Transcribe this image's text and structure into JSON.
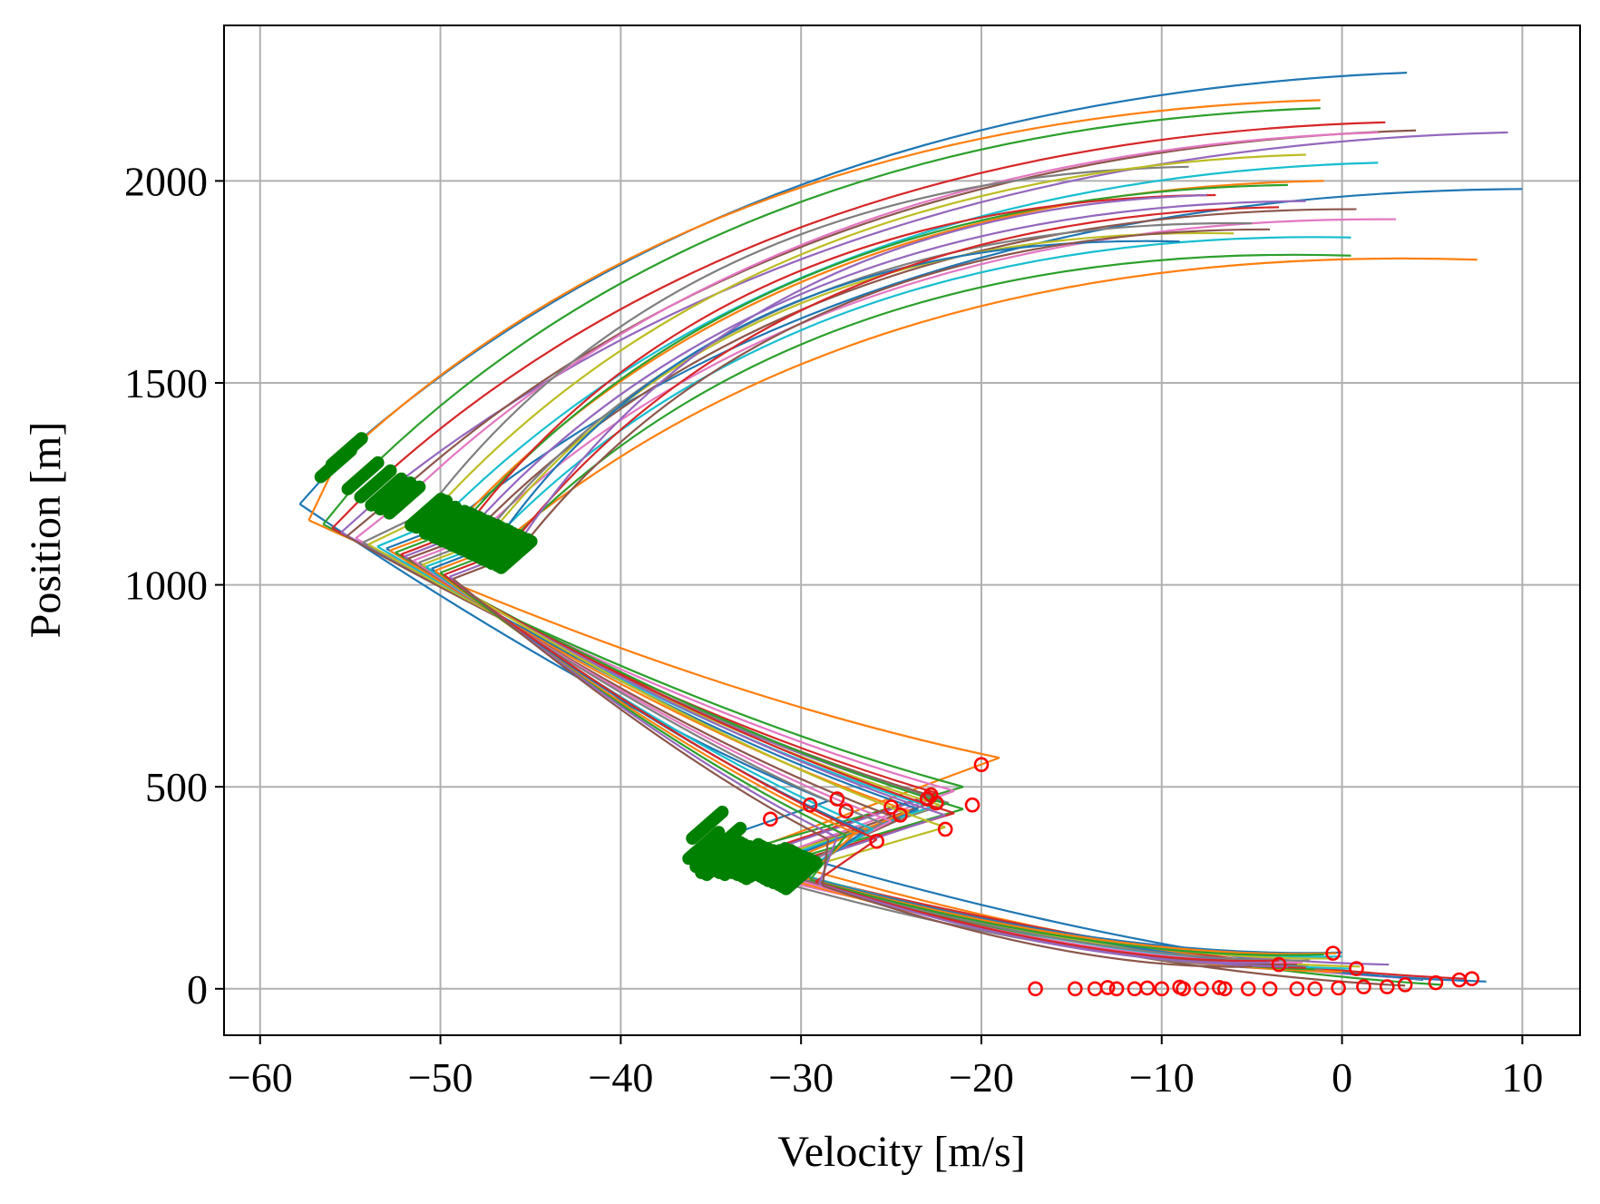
{
  "chart_data": {
    "type": "line",
    "title": "",
    "xlabel": "Velocity [m/s]",
    "ylabel": "Position [m]",
    "xlim": [
      -62,
      13.2
    ],
    "ylim": [
      -115,
      2385
    ],
    "x_ticks": [
      -60,
      -50,
      -40,
      -30,
      -20,
      -10,
      0,
      10
    ],
    "x_tick_labels": [
      "−60",
      "−50",
      "−40",
      "−30",
      "−20",
      "−10",
      "0",
      "10"
    ],
    "y_ticks": [
      0,
      500,
      1000,
      1500,
      2000
    ],
    "y_tick_labels": [
      "0",
      "500",
      "1000",
      "1500",
      "2000"
    ],
    "grid": true,
    "legend": "none",
    "series_colors": [
      "#1f77b4",
      "#ff7f0e",
      "#2ca02c",
      "#d62728",
      "#9467bd",
      "#8c564b",
      "#e377c2",
      "#7f7f7f",
      "#bcbd22",
      "#17becf"
    ],
    "marker_colors": {
      "phase_switch": "#008000",
      "stop_point": "#ff0000"
    },
    "trajectories": [
      {
        "phase1": [
          [
            -55.2,
            1330
          ],
          [
            3.6,
            2268
          ]
        ],
        "phase2": [
          [
            -57.8,
            1200
          ],
          [
            -28.5,
            465
          ]
        ],
        "phase3": [
          [
            -34,
            380
          ],
          [
            4.5,
            22
          ]
        ]
      },
      {
        "phase1": [
          [
            -55.8,
            1300
          ],
          [
            -1.2,
            2200
          ]
        ],
        "phase2": [
          [
            -57.3,
            1160
          ],
          [
            -19,
            572
          ]
        ],
        "phase3": [
          [
            -33,
            340
          ],
          [
            1.5,
            40
          ]
        ]
      },
      {
        "phase1": [
          [
            -54.3,
            1270
          ],
          [
            -1.2,
            2180
          ]
        ],
        "phase2": [
          [
            -56.5,
            1150
          ],
          [
            -21,
            500
          ]
        ],
        "phase3": [
          [
            -34.2,
            330
          ],
          [
            5.5,
            10
          ]
        ]
      },
      {
        "phase1": [
          [
            -53.6,
            1250
          ],
          [
            2.4,
            2145
          ]
        ],
        "phase2": [
          [
            -56.0,
            1140
          ],
          [
            -22.5,
            485
          ]
        ],
        "phase3": [
          [
            -33.5,
            320
          ],
          [
            6.8,
            25
          ]
        ]
      },
      {
        "phase1": [
          [
            -53.0,
            1230
          ],
          [
            9.2,
            2120
          ]
        ],
        "phase2": [
          [
            -55.5,
            1130
          ],
          [
            -23.0,
            475
          ]
        ],
        "phase3": [
          [
            -33.8,
            310
          ],
          [
            2.6,
            60
          ]
        ]
      },
      {
        "phase1": [
          [
            -52.5,
            1220
          ],
          [
            4.1,
            2125
          ]
        ],
        "phase2": [
          [
            -55.2,
            1120
          ],
          [
            -22.2,
            470
          ]
        ],
        "phase3": [
          [
            -33.0,
            300
          ],
          [
            3.5,
            8
          ]
        ]
      },
      {
        "phase1": [
          [
            -52.0,
            1210
          ],
          [
            2.0,
            2120
          ]
        ],
        "phase2": [
          [
            -54.7,
            1115
          ],
          [
            -21.5,
            490
          ]
        ],
        "phase3": [
          [
            -33.5,
            295
          ],
          [
            7.0,
            20
          ]
        ]
      },
      {
        "phase1": [
          [
            -50.8,
            1180
          ],
          [
            -8.5,
            2035
          ]
        ],
        "phase2": [
          [
            -54.3,
            1105
          ],
          [
            -21.8,
            460
          ]
        ],
        "phase3": [
          [
            -33.2,
            290
          ],
          [
            -1.0,
            45
          ]
        ]
      },
      {
        "phase1": [
          [
            -50.5,
            1175
          ],
          [
            -2.0,
            2065
          ]
        ],
        "phase2": [
          [
            -54.0,
            1100
          ],
          [
            -22.3,
            455
          ]
        ],
        "phase3": [
          [
            -33.0,
            305
          ],
          [
            1.0,
            55
          ]
        ]
      },
      {
        "phase1": [
          [
            -50.0,
            1160
          ],
          [
            2.0,
            2045
          ]
        ],
        "phase2": [
          [
            -53.5,
            1095
          ],
          [
            -22.8,
            450
          ]
        ],
        "phase3": [
          [
            -32.8,
            300
          ],
          [
            0.5,
            50
          ]
        ]
      },
      {
        "phase1": [
          [
            -49.5,
            1150
          ],
          [
            10.0,
            1980
          ]
        ],
        "phase2": [
          [
            -53.0,
            1090
          ],
          [
            -23.5,
            445
          ]
        ],
        "phase3": [
          [
            -32.5,
            295
          ],
          [
            8.0,
            18
          ]
        ]
      },
      {
        "phase1": [
          [
            -49.2,
            1145
          ],
          [
            -1.0,
            2000
          ]
        ],
        "phase2": [
          [
            -52.8,
            1085
          ],
          [
            -24.0,
            440
          ]
        ],
        "phase3": [
          [
            -32.2,
            290
          ],
          [
            0.0,
            42
          ]
        ]
      },
      {
        "phase1": [
          [
            -49.0,
            1140
          ],
          [
            -3.0,
            1990
          ]
        ],
        "phase2": [
          [
            -52.5,
            1080
          ],
          [
            -21.0,
            445
          ]
        ],
        "phase3": [
          [
            -32.0,
            300
          ],
          [
            -1.5,
            48
          ]
        ]
      },
      {
        "phase1": [
          [
            -48.7,
            1135
          ],
          [
            -7.0,
            1965
          ]
        ],
        "phase2": [
          [
            -52.2,
            1075
          ],
          [
            -21.5,
            435
          ]
        ],
        "phase3": [
          [
            -31.8,
            295
          ],
          [
            -2.0,
            52
          ]
        ]
      },
      {
        "phase1": [
          [
            -48.5,
            1130
          ],
          [
            -2.0,
            1950
          ]
        ],
        "phase2": [
          [
            -52.0,
            1070
          ],
          [
            -22.0,
            430
          ]
        ],
        "phase3": [
          [
            -31.5,
            290
          ],
          [
            -3.0,
            55
          ]
        ]
      },
      {
        "phase1": [
          [
            -48.2,
            1125
          ],
          [
            0.8,
            1930
          ]
        ],
        "phase2": [
          [
            -51.8,
            1065
          ],
          [
            -24.5,
            420
          ]
        ],
        "phase3": [
          [
            -31.2,
            285
          ],
          [
            -2.5,
            60
          ]
        ]
      },
      {
        "phase1": [
          [
            -48.0,
            1120
          ],
          [
            3.0,
            1905
          ]
        ],
        "phase2": [
          [
            -51.5,
            1060
          ],
          [
            -25.0,
            415
          ]
        ],
        "phase3": [
          [
            -31.0,
            280
          ],
          [
            -2.2,
            65
          ]
        ]
      },
      {
        "phase1": [
          [
            -47.7,
            1115
          ],
          [
            -5.0,
            1895
          ]
        ],
        "phase2": [
          [
            -51.2,
            1055
          ],
          [
            -25.5,
            410
          ]
        ],
        "phase3": [
          [
            -30.8,
            285
          ],
          [
            -1.8,
            70
          ]
        ]
      },
      {
        "phase1": [
          [
            -47.5,
            1110
          ],
          [
            -6.0,
            1870
          ]
        ],
        "phase2": [
          [
            -51.0,
            1050
          ],
          [
            -22.0,
            400
          ]
        ],
        "phase3": [
          [
            -30.5,
            290
          ],
          [
            -0.5,
            75
          ]
        ]
      },
      {
        "phase1": [
          [
            -47.2,
            1105
          ],
          [
            0.5,
            1860
          ]
        ],
        "phase2": [
          [
            -50.8,
            1045
          ],
          [
            -26.0,
            395
          ]
        ],
        "phase3": [
          [
            -30.2,
            285
          ],
          [
            0.0,
            80
          ]
        ]
      },
      {
        "phase1": [
          [
            -47.0,
            1100
          ],
          [
            -9.0,
            1850
          ]
        ],
        "phase2": [
          [
            -50.5,
            1040
          ],
          [
            -26.5,
            390
          ]
        ],
        "phase3": [
          [
            -30.0,
            280
          ],
          [
            0.0,
            90
          ]
        ]
      },
      {
        "phase1": [
          [
            -46.8,
            1095
          ],
          [
            7.5,
            1805
          ]
        ],
        "phase2": [
          [
            -50.3,
            1035
          ],
          [
            -27.0,
            385
          ]
        ],
        "phase3": [
          [
            -29.8,
            275
          ],
          [
            -0.3,
            88
          ]
        ]
      },
      {
        "phase1": [
          [
            -46.5,
            1090
          ],
          [
            0.5,
            1815
          ]
        ],
        "phase2": [
          [
            -50.0,
            1030
          ],
          [
            -27.5,
            380
          ]
        ],
        "phase3": [
          [
            -29.5,
            270
          ],
          [
            -1.0,
            85
          ]
        ]
      },
      {
        "phase1": [
          [
            -46.3,
            1085
          ],
          [
            -3.5,
            1935
          ]
        ],
        "phase2": [
          [
            -49.8,
            1025
          ],
          [
            -25.8,
            370
          ]
        ],
        "phase3": [
          [
            -29.2,
            265
          ],
          [
            -3.5,
            70
          ]
        ]
      },
      {
        "phase1": [
          [
            -46.0,
            1080
          ],
          [
            -7.5,
            1965
          ]
        ],
        "phase2": [
          [
            -49.5,
            1020
          ],
          [
            -28.0,
            375
          ]
        ],
        "phase3": [
          [
            -29.0,
            260
          ],
          [
            -4.0,
            65
          ]
        ]
      },
      {
        "phase1": [
          [
            -45.8,
            1075
          ],
          [
            -4.0,
            1880
          ]
        ],
        "phase2": [
          [
            -49.3,
            1015
          ],
          [
            -28.5,
            370
          ]
        ],
        "phase3": [
          [
            -28.8,
            255
          ],
          [
            -5.0,
            55
          ]
        ]
      }
    ],
    "phase_switch_marker_count": 26,
    "stop_points": [
      [
        -20.0,
        555
      ],
      [
        -20.5,
        455
      ],
      [
        -22.0,
        395
      ],
      [
        -25.8,
        365
      ],
      [
        -22.5,
        460
      ],
      [
        -23.0,
        470
      ],
      [
        -24.5,
        430
      ],
      [
        -27.5,
        440
      ],
      [
        -28.0,
        470
      ],
      [
        -29.5,
        455
      ],
      [
        -31.7,
        420
      ],
      [
        -25.0,
        450
      ],
      [
        -22.8,
        480
      ],
      [
        -17.0,
        0
      ],
      [
        -14.8,
        0
      ],
      [
        -13.7,
        0
      ],
      [
        -12.5,
        0
      ],
      [
        -11.5,
        0
      ],
      [
        -10.0,
        0
      ],
      [
        -8.8,
        0
      ],
      [
        -7.8,
        0
      ],
      [
        -6.5,
        0
      ],
      [
        -5.2,
        0
      ],
      [
        -4.0,
        0
      ],
      [
        -2.5,
        0
      ],
      [
        -1.5,
        0
      ],
      [
        -0.5,
        88
      ],
      [
        0.8,
        50
      ],
      [
        3.5,
        10
      ],
      [
        5.2,
        15
      ],
      [
        6.5,
        22
      ],
      [
        7.2,
        25
      ],
      [
        -3.5,
        60
      ],
      [
        1.2,
        5
      ],
      [
        -13.0,
        3
      ],
      [
        -10.8,
        2
      ],
      [
        -9.0,
        4
      ],
      [
        -6.8,
        3
      ],
      [
        -0.2,
        2
      ],
      [
        2.5,
        5
      ]
    ]
  }
}
